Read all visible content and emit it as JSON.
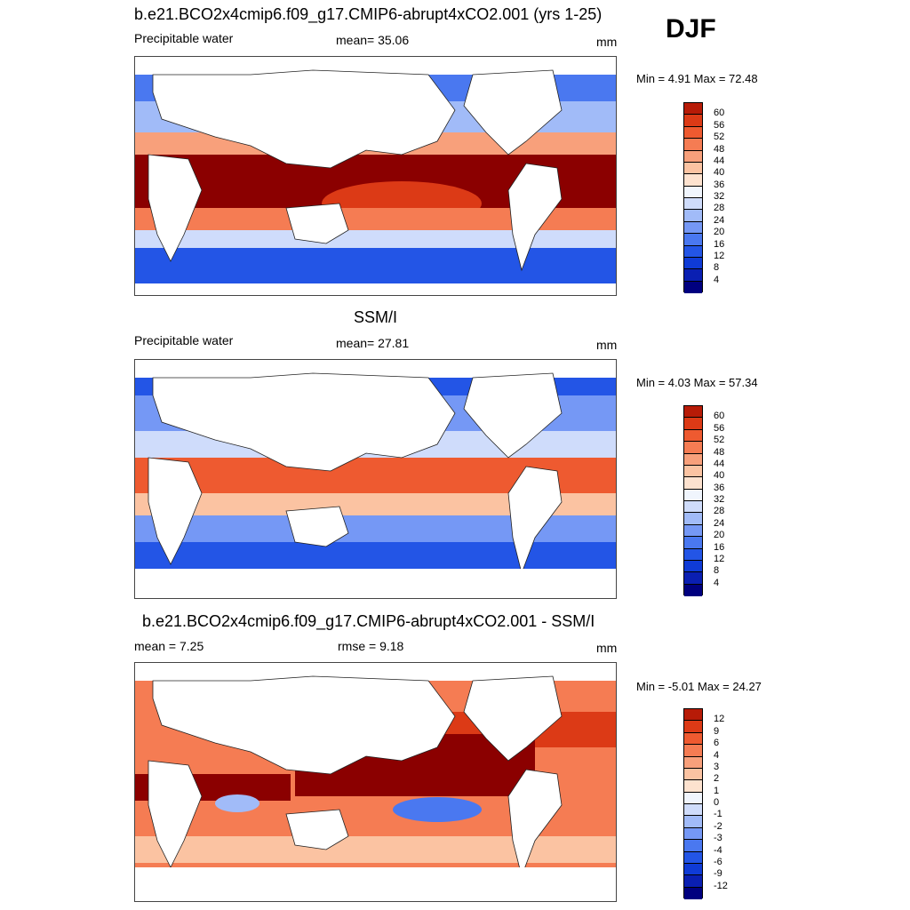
{
  "season": "DJF",
  "colors": {
    "abs": [
      "#00007f",
      "#0a1fb2",
      "#0f3bd6",
      "#2355e6",
      "#4a78f0",
      "#7598f5",
      "#a1bbf8",
      "#cfdcfb",
      "#f0f5fd",
      "#fde2cf",
      "#fbc3a2",
      "#f8a07b",
      "#f57c53",
      "#ee5a30",
      "#dc3a16",
      "#b71b07",
      "#8b0000"
    ],
    "diff": [
      "#00007f",
      "#0a1fb2",
      "#0f3bd6",
      "#2355e6",
      "#4a78f0",
      "#7598f5",
      "#a1bbf8",
      "#cfdcfb",
      "#f0f5fd",
      "#fde2cf",
      "#fbc3a2",
      "#f8a07b",
      "#f57c53",
      "#ee5a30",
      "#dc3a16",
      "#b71b07",
      "#8b0000"
    ]
  },
  "panels": [
    {
      "title": "b.e21.BCO2x4cmip6.f09_g17.CMIP6-abrupt4xCO2.001 (yrs 1-25)",
      "left_label": "Precipitable water",
      "center_label": "mean=  35.06",
      "units": "mm",
      "minmax": "Min =   4.91 Max =  72.48",
      "colorbar_labels": [
        "60",
        "56",
        "52",
        "48",
        "44",
        "40",
        "36",
        "32",
        "28",
        "24",
        "20",
        "16",
        "12",
        "8",
        "4"
      ]
    },
    {
      "title": "SSM/I",
      "left_label": "Precipitable water",
      "center_label": "mean=  27.81",
      "units": "mm",
      "minmax": "Min =   4.03 Max =  57.34",
      "colorbar_labels": [
        "60",
        "56",
        "52",
        "48",
        "44",
        "40",
        "36",
        "32",
        "28",
        "24",
        "20",
        "16",
        "12",
        "8",
        "4"
      ]
    },
    {
      "title": "b.e21.BCO2x4cmip6.f09_g17.CMIP6-abrupt4xCO2.001 - SSM/I",
      "left_label": "mean =   7.25",
      "center_label": "rmse =   9.18",
      "units": "mm",
      "minmax": "Min =  -5.01 Max =  24.27",
      "colorbar_labels": [
        "12",
        "9",
        "6",
        "4",
        "3",
        "2",
        "1",
        "0",
        "-1",
        "-2",
        "-3",
        "-4",
        "-6",
        "-9",
        "-12"
      ]
    }
  ],
  "chart_data": [
    {
      "type": "heatmap",
      "title": "b.e21.BCO2x4cmip6.f09_g17.CMIP6-abrupt4xCO2.001 (yrs 1-25)",
      "variable": "Precipitable water",
      "units": "mm",
      "mean": 35.06,
      "min": 4.91,
      "max": 72.48,
      "contour_levels": [
        4,
        8,
        12,
        16,
        20,
        24,
        28,
        32,
        36,
        40,
        44,
        48,
        52,
        56,
        60
      ],
      "lon_range": [
        30,
        390
      ],
      "lat_range": [
        -90,
        90
      ],
      "zonal_profile": {
        "lat": [
          -90,
          -60,
          -45,
          -30,
          -20,
          -10,
          0,
          10,
          20,
          30,
          45,
          60,
          90
        ],
        "value": [
          4,
          8,
          14,
          26,
          38,
          52,
          60,
          58,
          42,
          28,
          16,
          8,
          4
        ]
      }
    },
    {
      "type": "heatmap",
      "title": "SSM/I",
      "variable": "Precipitable water",
      "units": "mm",
      "mean": 27.81,
      "min": 4.03,
      "max": 57.34,
      "contour_levels": [
        4,
        8,
        12,
        16,
        20,
        24,
        28,
        32,
        36,
        40,
        44,
        48,
        52,
        56,
        60
      ],
      "lon_range": [
        30,
        390
      ],
      "lat_range": [
        -90,
        90
      ],
      "zonal_profile": {
        "lat": [
          -90,
          -60,
          -45,
          -30,
          -20,
          -10,
          0,
          10,
          20,
          30,
          45,
          60,
          90
        ],
        "value": [
          4,
          6,
          10,
          20,
          30,
          40,
          48,
          46,
          34,
          22,
          12,
          7,
          4
        ]
      }
    },
    {
      "type": "heatmap",
      "title": "b.e21.BCO2x4cmip6.f09_g17.CMIP6-abrupt4xCO2.001 - SSM/I",
      "variable": "Precipitable water",
      "units": "mm",
      "mean": 7.25,
      "rmse": 9.18,
      "min": -5.01,
      "max": 24.27,
      "contour_levels": [
        -12,
        -9,
        -6,
        -4,
        -3,
        -2,
        -1,
        0,
        1,
        2,
        3,
        4,
        6,
        9,
        12
      ],
      "lon_range": [
        30,
        390
      ],
      "lat_range": [
        -90,
        90
      ],
      "zonal_profile": {
        "lat": [
          -90,
          -60,
          -45,
          -30,
          -20,
          -10,
          0,
          10,
          20,
          30,
          45,
          60,
          90
        ],
        "value": [
          0,
          2,
          4,
          6,
          8,
          12,
          12,
          12,
          8,
          6,
          4,
          2,
          0
        ]
      }
    }
  ]
}
